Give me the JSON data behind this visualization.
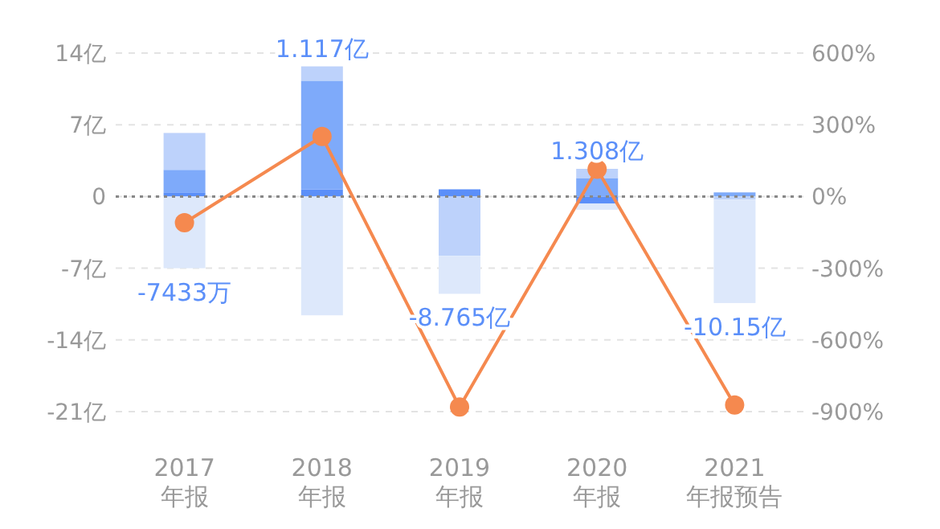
{
  "chart_data": {
    "type": "bar",
    "stacked": true,
    "categories": [
      "2017\n年报",
      "2018\n年报",
      "2019\n年报",
      "2020\n年报",
      "2021\n年报预告"
    ],
    "series": [
      {
        "color": "#5b8ff9",
        "values": [
          0.4,
          0.7,
          0.7,
          -0.7,
          null
        ]
      },
      {
        "color": "#7eaafa",
        "values": [
          2.2,
          10.6,
          null,
          1.8,
          0.4
        ]
      },
      {
        "color": "#bdd2fb",
        "values": [
          3.6,
          1.4,
          -5.8,
          0.9,
          -0.3
        ]
      },
      {
        "color": "#dde8fb",
        "values": [
          -7,
          -11.6,
          -3.7,
          -0.6,
          -10.1
        ]
      },
      {
        "type": "line",
        "axis": "y2",
        "color": "#f5894f",
        "marker": "circle",
        "values": [
          -110,
          251,
          -881,
          114,
          -872
        ]
      }
    ],
    "ylim": [
      -21,
      14
    ],
    "yticks": [
      {
        "value": 14,
        "label": "14亿"
      },
      {
        "value": 7,
        "label": "7亿"
      },
      0,
      {
        "value": -7,
        "label": "-7亿"
      },
      {
        "value": -14,
        "label": "-14亿"
      },
      {
        "value": -21,
        "label": "-21亿"
      }
    ],
    "y2lim": [
      -900,
      600
    ],
    "y2ticks": [
      {
        "value": 600,
        "label": "600%"
      },
      {
        "value": 300,
        "label": "300%"
      },
      {
        "value": 0,
        "label": "0%"
      },
      {
        "value": -300,
        "label": "-300%"
      },
      {
        "value": -600,
        "label": "-600%"
      },
      {
        "value": -900,
        "label": "-900%"
      }
    ],
    "grid": "y",
    "ref_lines": [
      {
        "axis": "y",
        "value": 0,
        "color": "#888888",
        "line_style": "dotted"
      }
    ],
    "annotations": [
      {
        "text": "-7433万",
        "x": "2017\n年报",
        "y": -7
      },
      {
        "text": "1.117亿",
        "x": "2018\n年报",
        "y": 12.7
      },
      {
        "text": "-8.765亿",
        "x": "2019\n年报",
        "y": -9.5
      },
      {
        "text": "1.308亿",
        "x": "2020\n年报",
        "y": 2.7
      },
      {
        "text": "-10.15亿",
        "x": "2021\n年报预告",
        "y": -10.4
      }
    ]
  }
}
